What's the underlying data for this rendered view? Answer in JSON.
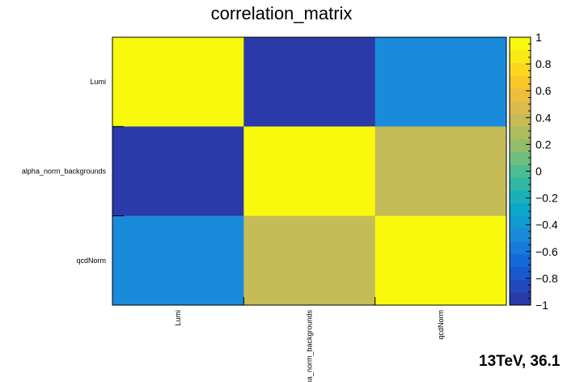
{
  "chart_data": {
    "type": "heatmap",
    "title": "correlation_matrix",
    "x_categories": [
      "Lumi",
      "alpha_norm_backgrounds",
      "qcdNorm"
    ],
    "y_categories": [
      "Lumi",
      "alpha_norm_backgrounds",
      "qcdNorm"
    ],
    "values": [
      [
        1.0,
        -1.0,
        -0.55
      ],
      [
        -1.0,
        1.0,
        0.4
      ],
      [
        -0.55,
        0.4,
        1.0
      ]
    ],
    "zlim": [
      -1,
      1
    ],
    "colorbar_ticks": [
      "1",
      "0.8",
      "0.6",
      "0.4",
      "0.2",
      "0",
      "−0.2",
      "−0.4",
      "−0.6",
      "−0.8",
      "−1"
    ],
    "colorscale": [
      "#2a3aa8",
      "#2148bd",
      "#1859cf",
      "#126ad8",
      "#157bdc",
      "#1a8bda",
      "#1199d2",
      "#0aa7c8",
      "#18b1b8",
      "#30b8a4",
      "#4cbd92",
      "#6ebf7d",
      "#90be6b",
      "#adbc5e",
      "#c5bb57",
      "#dcbb4c",
      "#edbe3a",
      "#f9c72a",
      "#fdd71e",
      "#fae917",
      "#f9f90e"
    ],
    "annotation": "13TeV, 36.1"
  }
}
